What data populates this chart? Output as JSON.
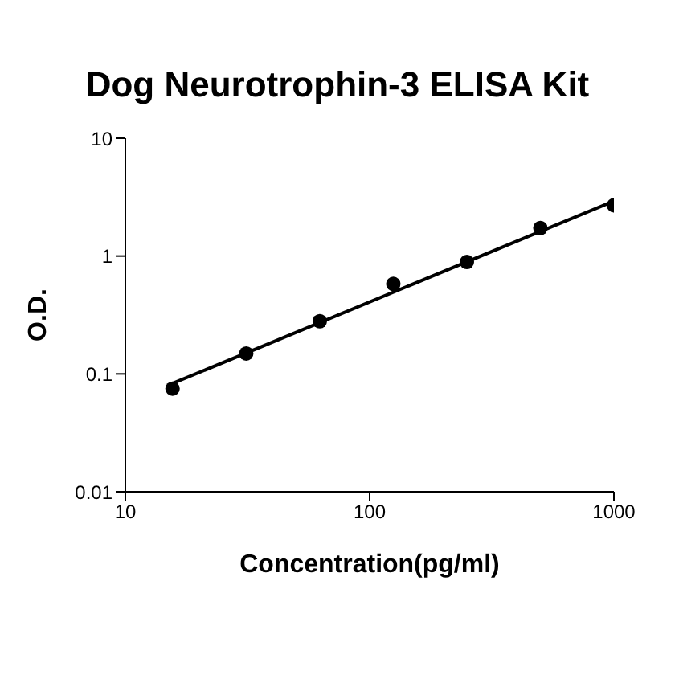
{
  "chart_data": {
    "type": "scatter",
    "title": "Dog Neurotrophin-3 ELISA Kit",
    "xlabel": "Concentration(pg/ml)",
    "ylabel": "O.D.",
    "log": "xy",
    "grid": false,
    "series": [
      {
        "color": "#000000",
        "marker": "circle",
        "x": [
          15.6,
          31.25,
          62.5,
          125,
          250,
          500,
          1000
        ],
        "values": [
          0.075,
          0.149,
          0.28,
          0.58,
          0.89,
          1.73,
          2.7
        ]
      },
      {
        "type": "line",
        "color": "#000000",
        "marker": "none",
        "x": [
          15.6,
          1000
        ],
        "values": [
          0.083,
          2.93
        ]
      }
    ],
    "xlim": [
      10,
      1000
    ],
    "xticks": [
      10,
      100,
      1000
    ],
    "ylim": [
      0.01,
      10
    ],
    "yticks": [
      0.01,
      0.1,
      1,
      10
    ]
  }
}
